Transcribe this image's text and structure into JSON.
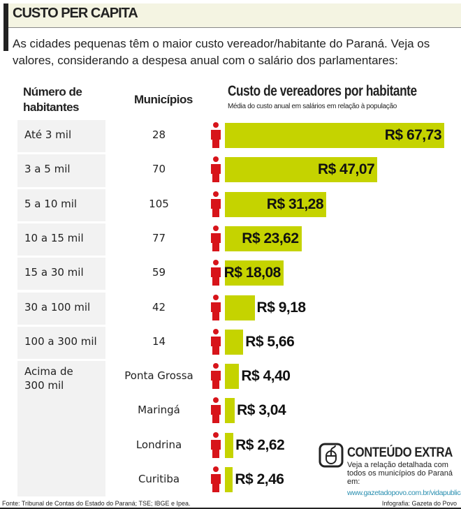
{
  "header": {
    "title": "CUSTO PER CAPITA"
  },
  "intro": "As cidades pequenas têm o maior custo vereador/habitante do Paraná. Veja os valores, considerando a despesa anual com o salário dos parlamentares:",
  "colors": {
    "bar": "#c5d300",
    "person": "#d7141a",
    "cell": "#f2f2f2"
  },
  "chart_data": {
    "type": "bar",
    "orientation": "horizontal",
    "title": "Custo de vereadores por habitante",
    "subtitle": "Média do custo anual em salários em relação à população",
    "column_headers": {
      "habitantes": "Número de habitantes",
      "municipios": "Municípios"
    },
    "rows": [
      {
        "group": "Até 3 mil",
        "municipios": "28",
        "value": 67.73,
        "label": "R$ 67,73"
      },
      {
        "group": "3 a 5 mil",
        "municipios": "70",
        "value": 47.07,
        "label": "R$ 47,07"
      },
      {
        "group": "5 a 10 mil",
        "municipios": "105",
        "value": 31.28,
        "label": "R$ 31,28"
      },
      {
        "group": "10 a 15 mil",
        "municipios": "77",
        "value": 23.62,
        "label": "R$ 23,62"
      },
      {
        "group": "15 a 30 mil",
        "municipios": "59",
        "value": 18.08,
        "label": "R$ 18,08"
      },
      {
        "group": "30 a 100 mil",
        "municipios": "42",
        "value": 9.18,
        "label": "R$ 9,18"
      },
      {
        "group": "100 a 300 mil",
        "municipios": "14",
        "value": 5.66,
        "label": "R$ 5,66"
      },
      {
        "group": "Acima de 300 mil",
        "municipios": "Ponta Grossa",
        "value": 4.4,
        "label": "R$ 4,40"
      },
      {
        "group": "",
        "municipios": "Maringá",
        "value": 3.04,
        "label": "R$ 3,04"
      },
      {
        "group": "",
        "municipios": "Londrina",
        "value": 2.62,
        "label": "R$ 2,62"
      },
      {
        "group": "",
        "municipios": "Curitiba",
        "value": 2.46,
        "label": "R$ 2,46"
      }
    ]
  },
  "extra": {
    "title": "CONTEÚDO EXTRA",
    "text": "Veja a relação detalhada com todos os municípios do Paraná em:",
    "link": "www.gazetadopovo.com.br/vidapublica",
    "icon": "mouse-icon"
  },
  "footer": {
    "source": "Fonte: Tribunal de Contas do Estado do Paraná; TSE; IBGE e Ipea.",
    "credit": "Infografia: Gazeta do Povo"
  }
}
